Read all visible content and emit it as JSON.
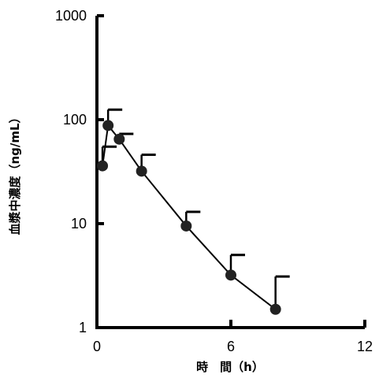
{
  "chart_data": {
    "type": "line",
    "title": "",
    "xlabel": "時　間（h）",
    "ylabel": "血漿中濃度（ng/mL）",
    "xlim": [
      0,
      12
    ],
    "ylim": [
      1,
      1000
    ],
    "yscale": "log",
    "grid": false,
    "legend": "none",
    "x_ticks": [
      "0",
      "6",
      "12"
    ],
    "y_ticks": [
      "1",
      "10",
      "100",
      "1000"
    ],
    "series": [
      {
        "x": [
          0.25,
          0.5,
          1,
          2,
          4,
          6,
          8
        ],
        "y": [
          36,
          88,
          65,
          32,
          9.5,
          3.2,
          1.5
        ],
        "error_upper": [
          55,
          125,
          73,
          46,
          13,
          5,
          3.1
        ]
      }
    ],
    "colors": {
      "line": "#000000",
      "marker": "#222222"
    }
  }
}
